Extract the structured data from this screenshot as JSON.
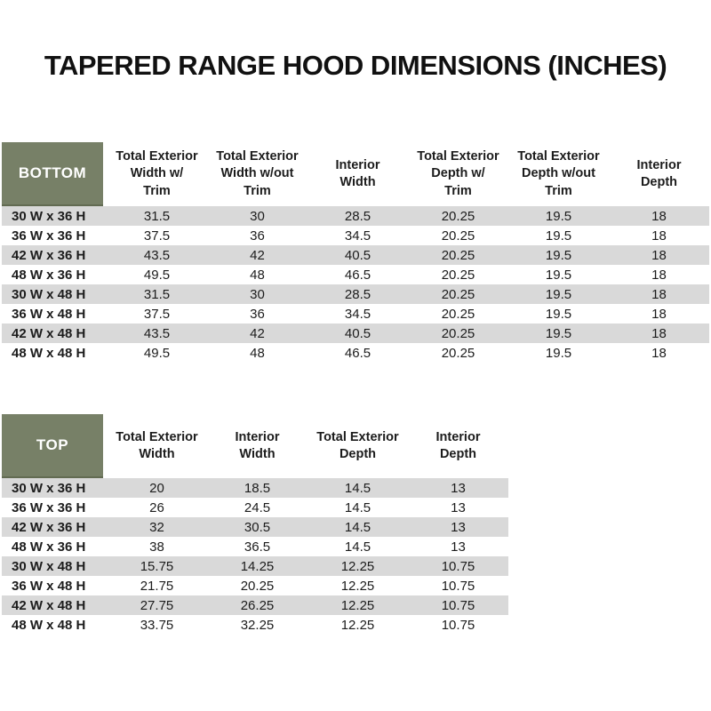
{
  "page": {
    "title": "TAPERED RANGE HOOD DIMENSIONS (INCHES)"
  },
  "colors": {
    "header_green": "#778067",
    "header_green_edge": "#626b52",
    "stripe_gray": "#d9d9d9",
    "text": "#1c1c1c",
    "corner_text": "#ffffff",
    "background": "#ffffff"
  },
  "tables": [
    {
      "id": "bottom",
      "corner_label": "BOTTOM",
      "columns": [
        "Total Exterior\nWidth w/\nTrim",
        "Total Exterior\nWidth w/out\nTrim",
        "Interior\nWidth",
        "Total Exterior\nDepth w/\nTrim",
        "Total Exterior\nDepth w/out\nTrim",
        "Interior\nDepth"
      ],
      "rows": [
        {
          "label": "30 W x 36 H",
          "values": [
            "31.5",
            "30",
            "28.5",
            "20.25",
            "19.5",
            "18"
          ]
        },
        {
          "label": "36 W x 36 H",
          "values": [
            "37.5",
            "36",
            "34.5",
            "20.25",
            "19.5",
            "18"
          ]
        },
        {
          "label": "42 W x 36 H",
          "values": [
            "43.5",
            "42",
            "40.5",
            "20.25",
            "19.5",
            "18"
          ]
        },
        {
          "label": "48 W x 36 H",
          "values": [
            "49.5",
            "48",
            "46.5",
            "20.25",
            "19.5",
            "18"
          ]
        },
        {
          "label": "30 W x 48 H",
          "values": [
            "31.5",
            "30",
            "28.5",
            "20.25",
            "19.5",
            "18"
          ]
        },
        {
          "label": "36 W x 48 H",
          "values": [
            "37.5",
            "36",
            "34.5",
            "20.25",
            "19.5",
            "18"
          ]
        },
        {
          "label": "42 W x 48 H",
          "values": [
            "43.5",
            "42",
            "40.5",
            "20.25",
            "19.5",
            "18"
          ]
        },
        {
          "label": "48 W x 48 H",
          "values": [
            "49.5",
            "48",
            "46.5",
            "20.25",
            "19.5",
            "18"
          ]
        }
      ]
    },
    {
      "id": "top",
      "corner_label": "TOP",
      "columns": [
        "Total Exterior\nWidth",
        "Interior\nWidth",
        "Total Exterior\nDepth",
        "Interior\nDepth"
      ],
      "rows": [
        {
          "label": "30 W x 36 H",
          "values": [
            "20",
            "18.5",
            "14.5",
            "13"
          ]
        },
        {
          "label": "36 W x 36 H",
          "values": [
            "26",
            "24.5",
            "14.5",
            "13"
          ]
        },
        {
          "label": "42 W x 36 H",
          "values": [
            "32",
            "30.5",
            "14.5",
            "13"
          ]
        },
        {
          "label": "48 W x 36 H",
          "values": [
            "38",
            "36.5",
            "14.5",
            "13"
          ]
        },
        {
          "label": "30 W x 48 H",
          "values": [
            "15.75",
            "14.25",
            "12.25",
            "10.75"
          ]
        },
        {
          "label": "36 W x 48 H",
          "values": [
            "21.75",
            "20.25",
            "12.25",
            "10.75"
          ]
        },
        {
          "label": "42 W x 48 H",
          "values": [
            "27.75",
            "26.25",
            "12.25",
            "10.75"
          ]
        },
        {
          "label": "48 W x 48 H",
          "values": [
            "33.75",
            "32.25",
            "12.25",
            "10.75"
          ]
        }
      ]
    }
  ]
}
